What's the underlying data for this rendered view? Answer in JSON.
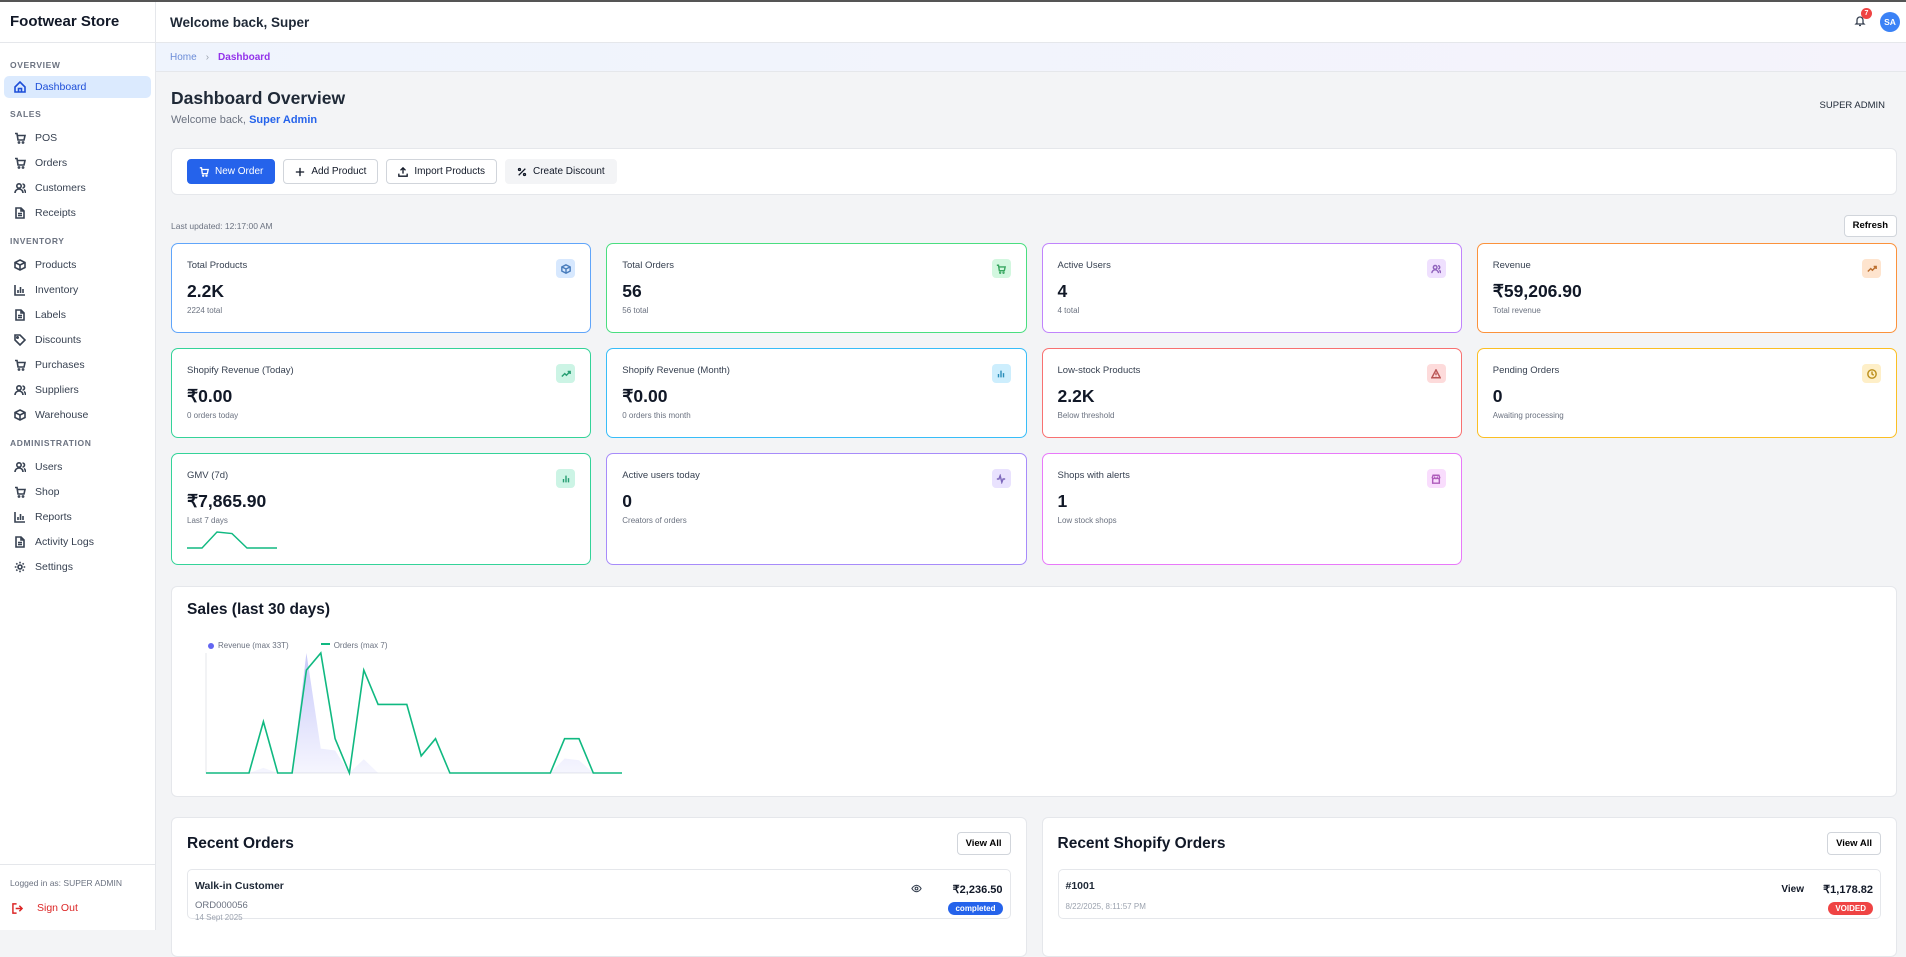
{
  "app": {
    "brand": "Footwear Store",
    "welcome": "Welcome back, Super",
    "notifications": "7",
    "avatar": "SA"
  },
  "sidebar": {
    "sections": [
      {
        "title": "OVERVIEW",
        "items": [
          {
            "label": "Dashboard",
            "icon": "home-icon",
            "active": true
          }
        ]
      },
      {
        "title": "SALES",
        "items": [
          {
            "label": "POS",
            "icon": "cart-icon"
          },
          {
            "label": "Orders",
            "icon": "cart-icon"
          },
          {
            "label": "Customers",
            "icon": "users-icon"
          },
          {
            "label": "Receipts",
            "icon": "file-icon"
          }
        ]
      },
      {
        "title": "INVENTORY",
        "items": [
          {
            "label": "Products",
            "icon": "box-icon"
          },
          {
            "label": "Inventory",
            "icon": "chart-icon"
          },
          {
            "label": "Labels",
            "icon": "file-icon"
          },
          {
            "label": "Discounts",
            "icon": "tag-icon"
          },
          {
            "label": "Purchases",
            "icon": "cart-icon"
          },
          {
            "label": "Suppliers",
            "icon": "users-icon"
          },
          {
            "label": "Warehouse",
            "icon": "box-icon"
          }
        ]
      },
      {
        "title": "ADMINISTRATION",
        "items": [
          {
            "label": "Users",
            "icon": "users-icon"
          },
          {
            "label": "Shop",
            "icon": "cart-icon"
          },
          {
            "label": "Reports",
            "icon": "chart-icon"
          },
          {
            "label": "Activity Logs",
            "icon": "file-icon"
          },
          {
            "label": "Settings",
            "icon": "gear-icon"
          }
        ]
      }
    ],
    "logged_in": "Logged in as: SUPER ADMIN",
    "sign_out": "Sign Out"
  },
  "breadcrumb": {
    "home": "Home",
    "current": "Dashboard"
  },
  "page": {
    "title": "Dashboard Overview",
    "subtitle_prefix": "Welcome back,",
    "subtitle_name": "Super Admin",
    "role": "SUPER ADMIN"
  },
  "actions": {
    "new_order": "New Order",
    "add_product": "Add Product",
    "import_products": "Import Products",
    "create_discount": "Create Discount"
  },
  "last_updated": "Last updated: 12:17:00 AM",
  "refresh": "Refresh",
  "stats": [
    {
      "label": "Total Products",
      "value": "2.2K",
      "sub": "2224 total",
      "color": "#60a5fa",
      "icon": "box-icon"
    },
    {
      "label": "Total Orders",
      "value": "56",
      "sub": "56 total",
      "color": "#4ade80",
      "icon": "cart-icon"
    },
    {
      "label": "Active Users",
      "value": "4",
      "sub": "4 total",
      "color": "#c084fc",
      "icon": "users-icon"
    },
    {
      "label": "Revenue",
      "value": "₹59,206.90",
      "sub": "Total revenue",
      "color": "#fb923c",
      "icon": "trending-up-icon"
    },
    {
      "label": "Shopify Revenue (Today)",
      "value": "₹0.00",
      "sub": "0 orders today",
      "color": "#34d399",
      "icon": "trending-up-icon"
    },
    {
      "label": "Shopify Revenue (Month)",
      "value": "₹0.00",
      "sub": "0 orders this month",
      "color": "#38bdf8",
      "icon": "bar-chart-icon"
    },
    {
      "label": "Low-stock Products",
      "value": "2.2K",
      "sub": "Below threshold",
      "color": "#f87171",
      "icon": "alert-icon"
    },
    {
      "label": "Pending Orders",
      "value": "0",
      "sub": "Awaiting processing",
      "color": "#fbbf24",
      "icon": "clock-icon"
    },
    {
      "label": "GMV (7d)",
      "value": "₹7,865.90",
      "sub": "Last 7 days",
      "color": "#34d399",
      "icon": "bar-chart-icon",
      "sparkline": [
        0,
        0,
        1,
        0.9,
        0,
        0,
        0
      ]
    },
    {
      "label": "Active users today",
      "value": "0",
      "sub": "Creators of orders",
      "color": "#a78bfa",
      "icon": "activity-icon"
    },
    {
      "label": "Shops with alerts",
      "value": "1",
      "sub": "Low stock shops",
      "color": "#e879f9",
      "icon": "store-icon"
    }
  ],
  "chart_data": {
    "type": "line",
    "title": "Sales (last 30 days)",
    "legend_placement": "top-left",
    "grid": false,
    "series": [
      {
        "name": "Revenue (max 33T)",
        "kind": "area",
        "color": "#6366f1",
        "values": [
          0,
          0,
          0,
          0,
          1.4,
          0,
          0,
          33,
          6.7,
          6.2,
          0,
          3.8,
          0,
          0,
          0,
          0,
          0,
          0,
          0,
          0,
          0,
          0,
          0,
          0,
          0,
          4,
          3.5,
          0,
          0,
          0
        ]
      },
      {
        "name": "Orders (max 7)",
        "kind": "line",
        "color": "#10b981",
        "values": [
          0,
          0,
          0,
          0,
          3,
          0,
          0,
          6,
          7,
          2,
          0,
          6,
          4,
          4,
          4,
          1,
          2,
          0,
          0,
          0,
          0,
          0,
          0,
          0,
          0,
          2,
          2,
          0,
          0,
          0
        ]
      }
    ]
  },
  "recent_orders": {
    "title": "Recent Orders",
    "view_all": "View All",
    "items": [
      {
        "customer": "Walk-in Customer",
        "id": "ORD000056",
        "date": "14 Sept 2025",
        "amount": "₹2,236.50",
        "status": "completed",
        "status_color": "#2563eb"
      }
    ]
  },
  "shopify_orders": {
    "title": "Recent Shopify Orders",
    "view_all": "View All",
    "items": [
      {
        "id": "#1001",
        "date": "8/22/2025, 8:11:57 PM",
        "view": "View",
        "amount": "₹1,178.82",
        "status": "VOIDED",
        "status_color": "#ef4444"
      }
    ]
  }
}
